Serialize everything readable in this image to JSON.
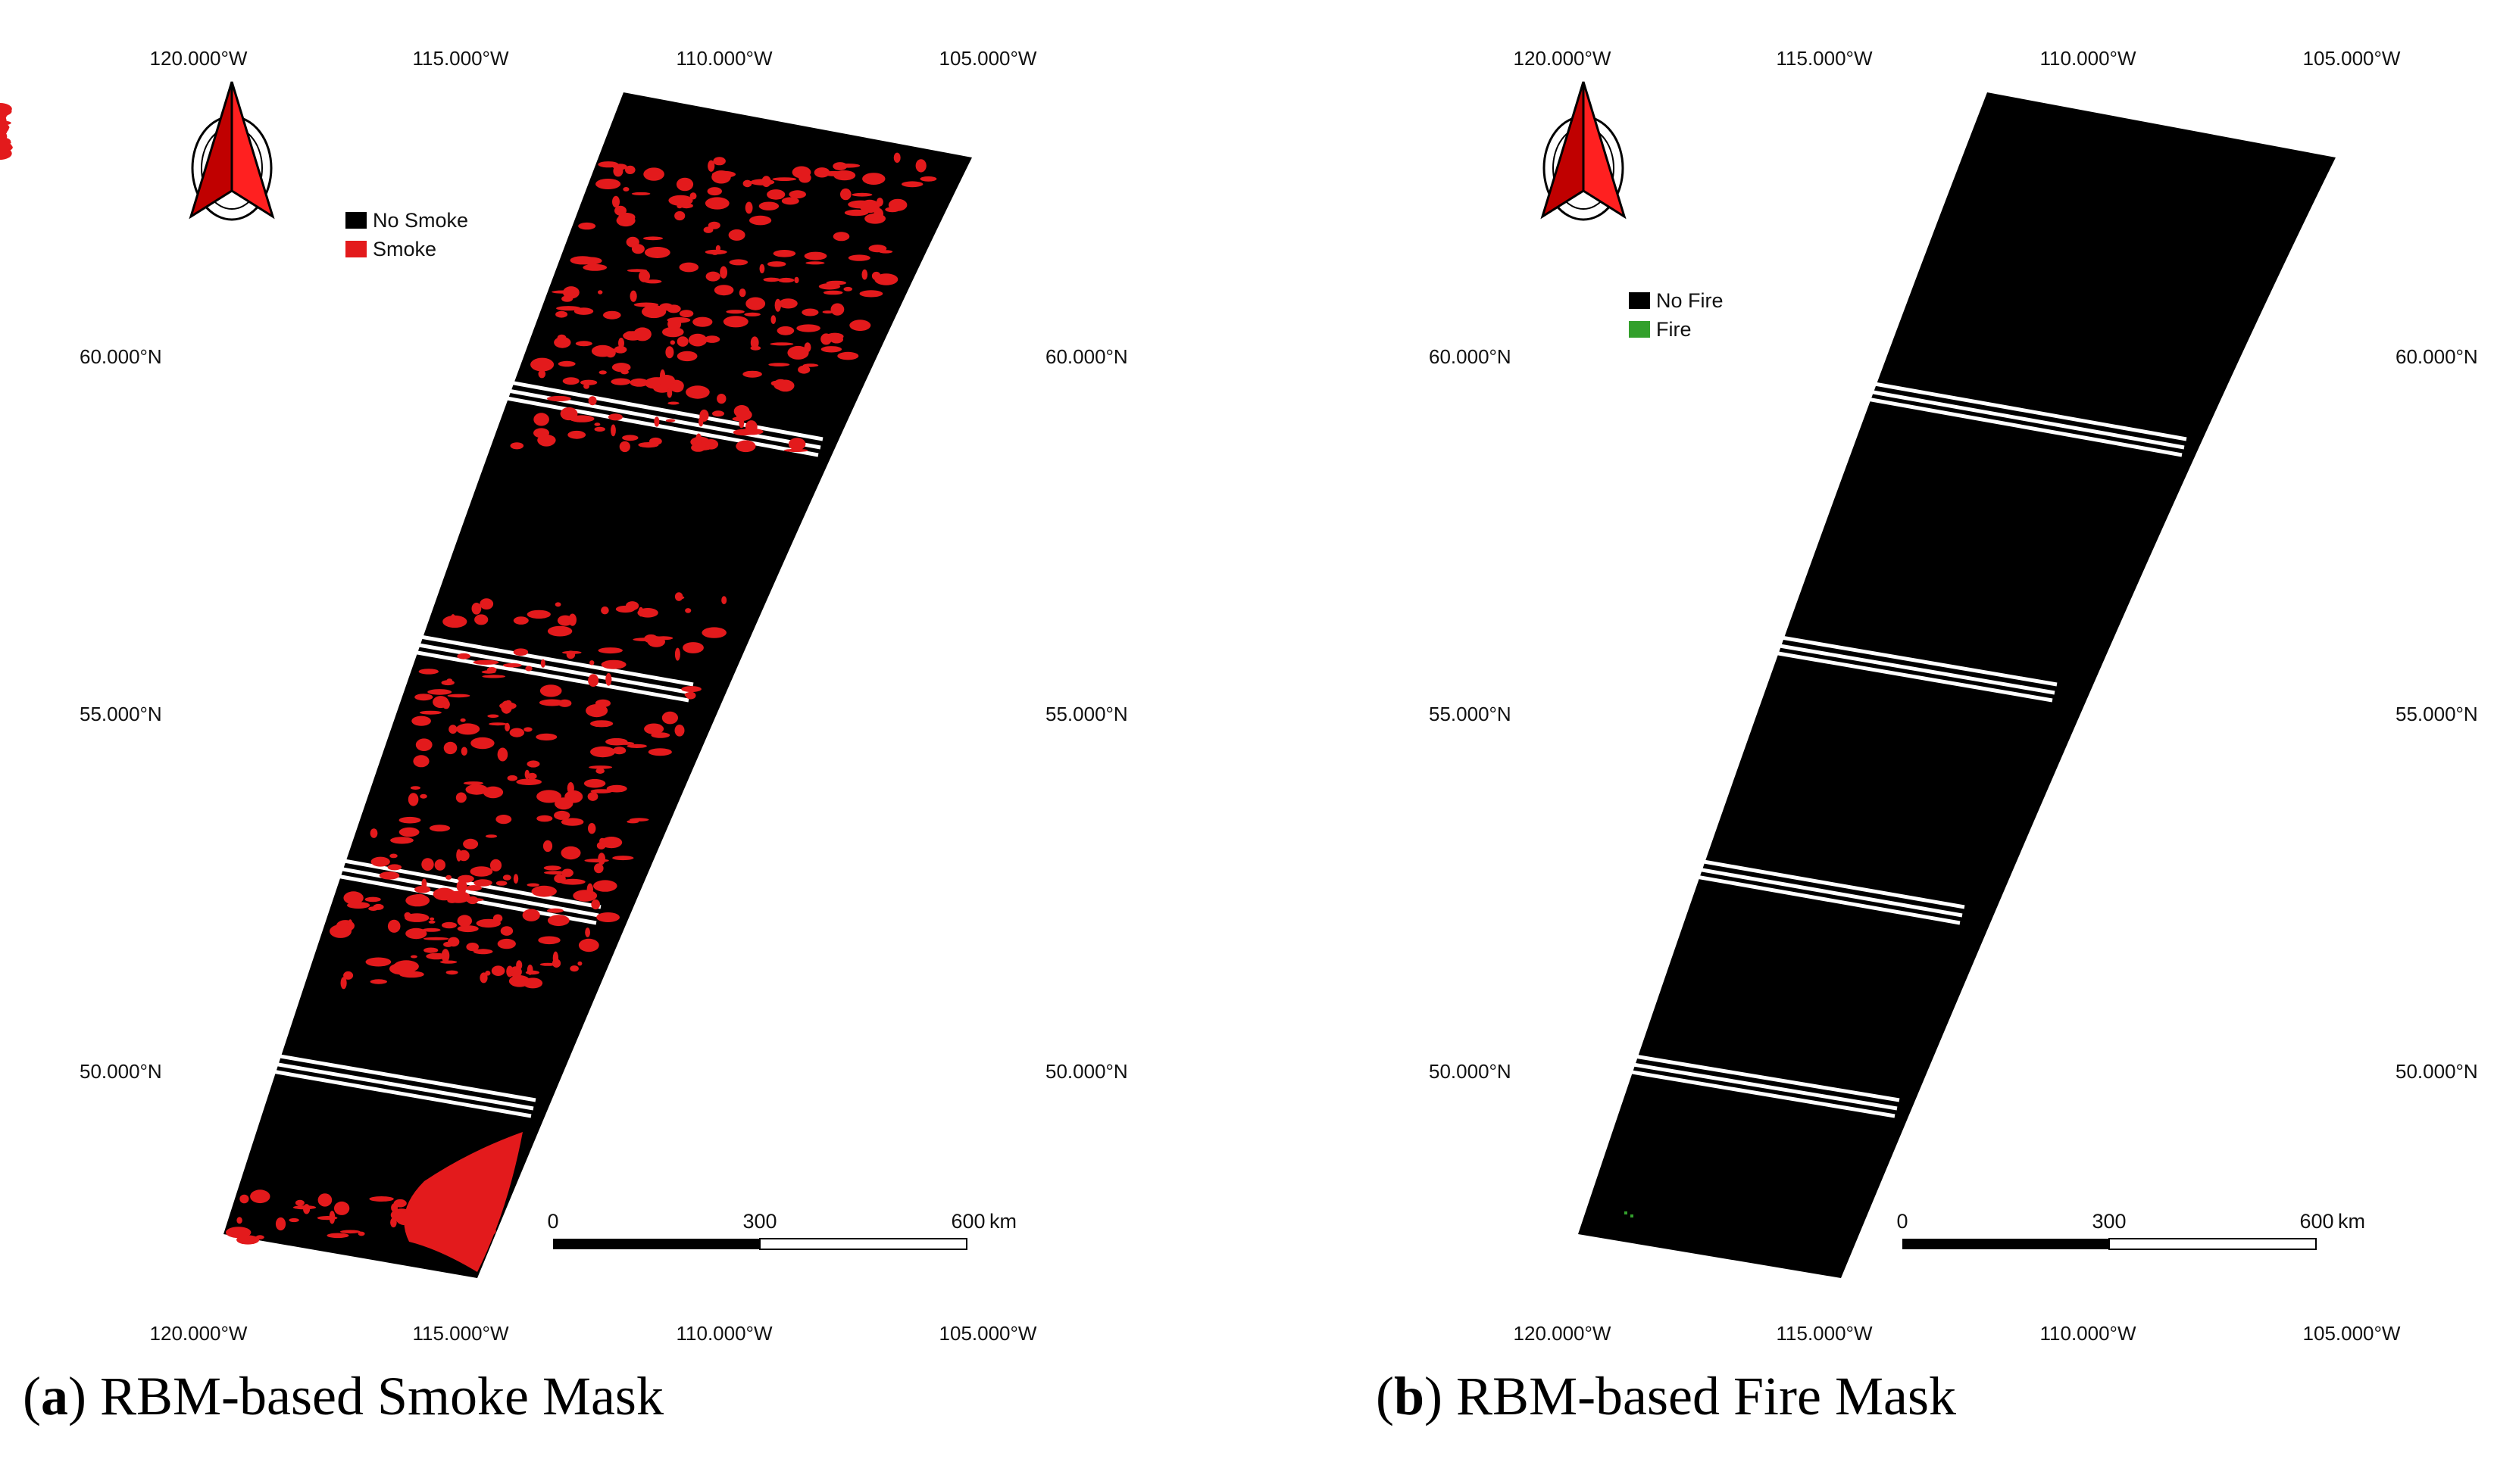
{
  "panels": [
    {
      "id": "a",
      "caption_letter": "a",
      "caption_text": "RBM-based Smoke Mask",
      "longitude_labels": [
        "120.000°W",
        "115.000°W",
        "110.000°W",
        "105.000°W"
      ],
      "latitude_labels": [
        "60.000°N",
        "55.000°N",
        "50.000°N"
      ],
      "legend": [
        {
          "label": "No Smoke",
          "color": "#000000"
        },
        {
          "label": "Smoke",
          "color": "#e31a1c"
        }
      ],
      "scale_bar": {
        "ticks": [
          "0",
          "300",
          "600"
        ],
        "unit": "km"
      },
      "mask_color": "#e31a1c"
    },
    {
      "id": "b",
      "caption_letter": "b",
      "caption_text": "RBM-based Fire Mask",
      "longitude_labels": [
        "120.000°W",
        "115.000°W",
        "110.000°W",
        "105.000°W"
      ],
      "latitude_labels": [
        "60.000°N",
        "55.000°N",
        "50.000°N"
      ],
      "legend": [
        {
          "label": "No Fire",
          "color": "#000000"
        },
        {
          "label": "Fire",
          "color": "#33a02c"
        }
      ],
      "scale_bar": {
        "ticks": [
          "0",
          "300",
          "600"
        ],
        "unit": "km"
      },
      "mask_color": "#33a02c"
    }
  ]
}
